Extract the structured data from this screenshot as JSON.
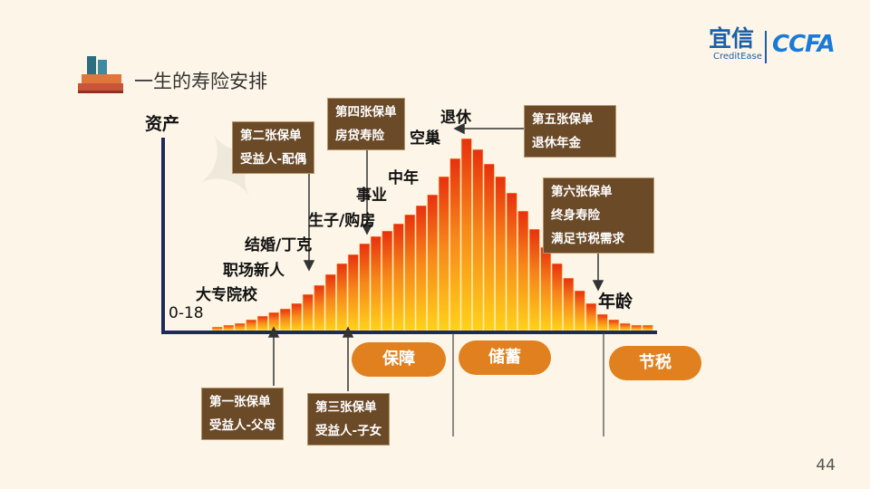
{
  "header": {
    "title": "一生的寿险安排"
  },
  "logo": {
    "cn": "宜信",
    "en": "CreditEase",
    "ccfa": "CCFA"
  },
  "axes": {
    "y_label": "资产",
    "x_label": "年龄",
    "origin_label": "0-18"
  },
  "stage_labels": [
    "大专院校",
    "职场新人",
    "结婚/丁克",
    "生子/购房",
    "事业",
    "中年",
    "空巢",
    "退休"
  ],
  "policies": [
    {
      "title": "第一张保单",
      "detail": "受益人-父母"
    },
    {
      "title": "第二张保单",
      "detail": "受益人-配偶"
    },
    {
      "title": "第三张保单",
      "detail": "受益人-子女"
    },
    {
      "title": "第四张保单",
      "detail": "房贷寿险"
    },
    {
      "title": "第五张保单",
      "detail": "退休年金"
    },
    {
      "title": "第六张保单",
      "detail": "终身寿险",
      "detail2": "满足节税需求"
    }
  ],
  "phases": [
    "保障",
    "储蓄",
    "节税"
  ],
  "page_number": "44",
  "colors": {
    "box": "#6b4a28",
    "pill": "#e1801e",
    "axis": "#1e2a5a",
    "bar_top": "#e8300e",
    "bar_bottom": "#ffd21a"
  }
}
